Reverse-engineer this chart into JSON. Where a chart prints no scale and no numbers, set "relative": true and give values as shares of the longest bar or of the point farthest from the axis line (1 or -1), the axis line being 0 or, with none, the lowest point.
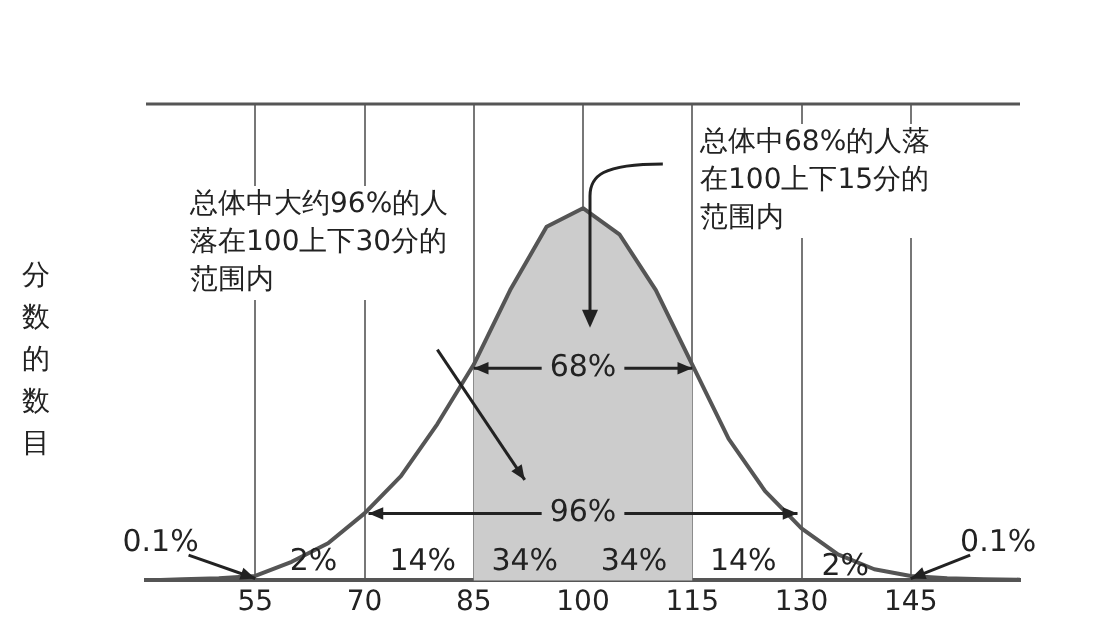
{
  "chart_data": {
    "type": "line",
    "relative": true,
    "ylabel": "分数的数目",
    "x": [
      40,
      45,
      50,
      55,
      60,
      65,
      70,
      75,
      80,
      85,
      90,
      95,
      100,
      105,
      110,
      115,
      120,
      125,
      130,
      135,
      140,
      145,
      150,
      155,
      160
    ],
    "series": [
      {
        "color": "#555555",
        "values": [
          0,
          0.003,
          0.006,
          0.012,
          0.05,
          0.1,
          0.18,
          0.28,
          0.42,
          0.58,
          0.78,
          0.95,
          1,
          0.93,
          0.78,
          0.58,
          0.38,
          0.24,
          0.14,
          0.07,
          0.03,
          0.012,
          0.006,
          0.003,
          0.002
        ]
      }
    ],
    "xlim": [
      40,
      160
    ],
    "xticks": [
      55,
      70,
      85,
      100,
      115,
      130,
      145
    ],
    "grid": "x",
    "bands": [
      {
        "axis": "x",
        "from": 85,
        "to": 115,
        "color": "#cccccc"
      }
    ],
    "annotations": [
      "总体中大约96%的人落在100上下30分的范围内",
      "总体中68%的人落在100上下15分的范围内",
      "0.1%",
      "2%",
      "14%",
      "34%",
      "34%",
      "14%",
      "2%",
      "0.1%",
      "68%",
      "96%"
    ]
  }
}
